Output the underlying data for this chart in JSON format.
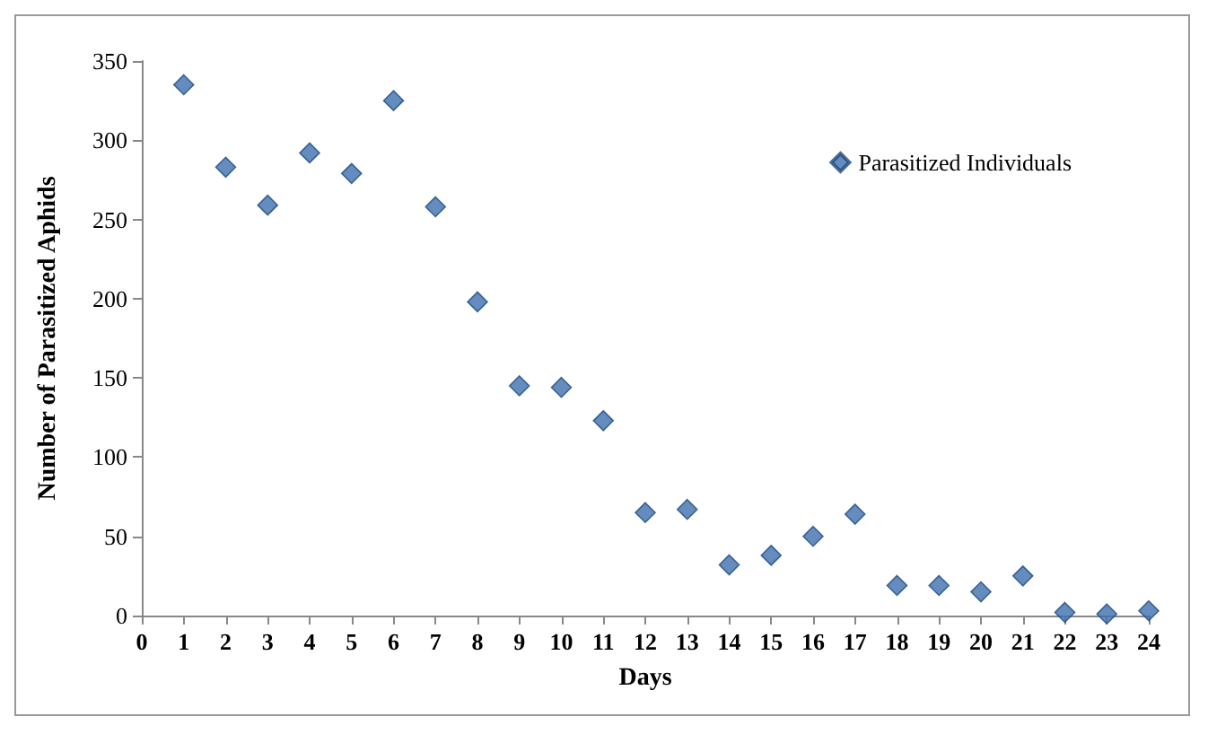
{
  "chart_data": {
    "type": "scatter",
    "xlabel": "Days",
    "ylabel": "Number of Parasitized Aphids",
    "x": [
      1,
      2,
      3,
      4,
      5,
      6,
      7,
      8,
      9,
      10,
      11,
      12,
      13,
      14,
      15,
      16,
      17,
      18,
      19,
      20,
      21,
      22,
      23,
      24
    ],
    "series": [
      {
        "name": "Parasitized Individuals",
        "color": "#3f6fae",
        "values": [
          335,
          283,
          259,
          292,
          279,
          325,
          258,
          198,
          145,
          144,
          123,
          65,
          67,
          32,
          38,
          50,
          64,
          19,
          19,
          15,
          25,
          2,
          1,
          3
        ]
      }
    ],
    "xlim": [
      0,
      24
    ],
    "xticks": [
      0,
      1,
      2,
      3,
      4,
      5,
      6,
      7,
      8,
      9,
      10,
      11,
      12,
      13,
      14,
      15,
      16,
      17,
      18,
      19,
      20,
      21,
      22,
      23,
      24
    ],
    "ylim": [
      0,
      350
    ],
    "yticks": [
      0,
      50,
      100,
      150,
      200,
      250,
      300,
      350
    ],
    "grid": false,
    "legend": "top right",
    "marker": "diamond"
  }
}
